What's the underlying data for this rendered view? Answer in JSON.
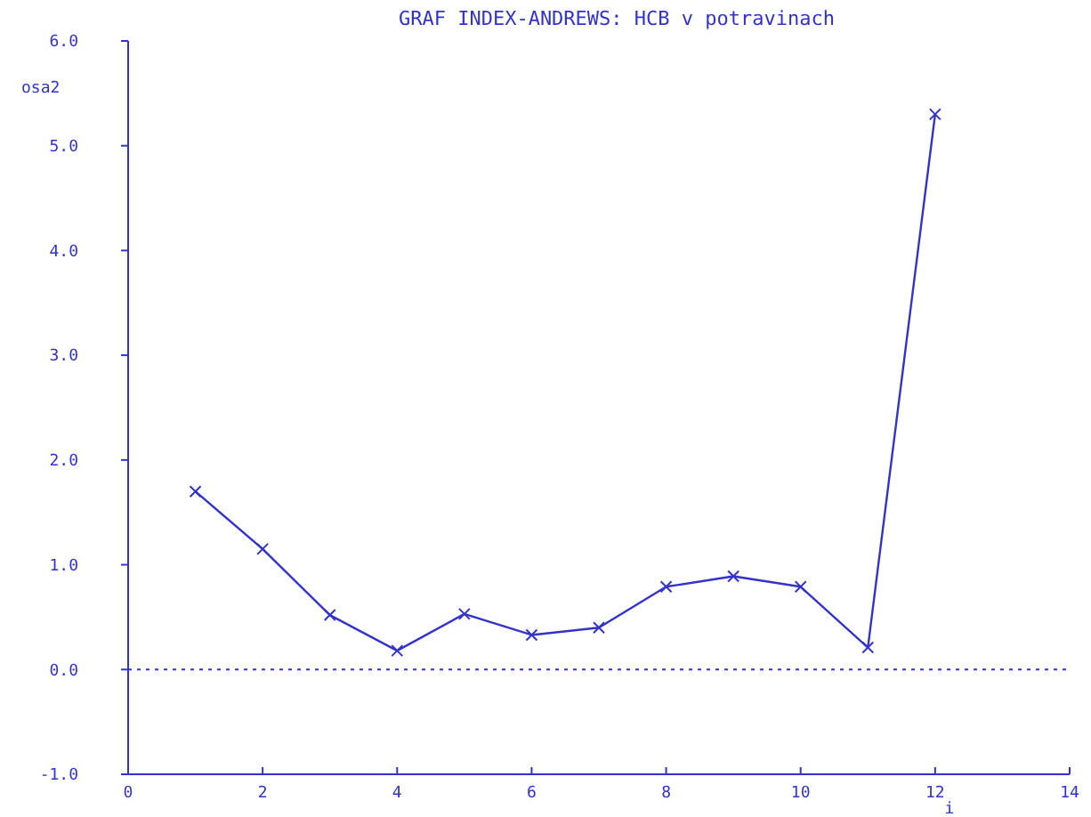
{
  "chart_data": {
    "type": "line",
    "title": "GRAF INDEX-ANDREWS: HCB v potravinach",
    "xlabel": "i",
    "ylabel": "osa2",
    "x": [
      1,
      2,
      3,
      4,
      5,
      6,
      7,
      8,
      9,
      10,
      11,
      12
    ],
    "series": [
      {
        "color": "#3333cc",
        "values": [
          1.7,
          1.15,
          0.52,
          0.18,
          0.53,
          0.33,
          0.4,
          0.79,
          0.89,
          0.79,
          0.21,
          5.3
        ]
      }
    ],
    "xlim": [
      0,
      14
    ],
    "xticks": [
      0,
      2,
      4,
      6,
      8,
      10,
      12,
      14
    ],
    "ylim": [
      -1,
      6
    ],
    "yticks": [
      {
        "value": -1,
        "label": "-1.0"
      },
      {
        "value": 0,
        "label": "0.0"
      },
      {
        "value": 1,
        "label": "1.0"
      },
      {
        "value": 2,
        "label": "2.0"
      },
      {
        "value": 3,
        "label": "3.0"
      },
      {
        "value": 4,
        "label": "4.0"
      },
      {
        "value": 5,
        "label": "5.0"
      },
      {
        "value": 6,
        "label": "6.0"
      }
    ],
    "ref_lines": [
      {
        "axis": "y",
        "value": 0,
        "color": "#3333cc",
        "line_style": "dotted"
      }
    ],
    "marker": "cross",
    "line_style": "solid"
  }
}
